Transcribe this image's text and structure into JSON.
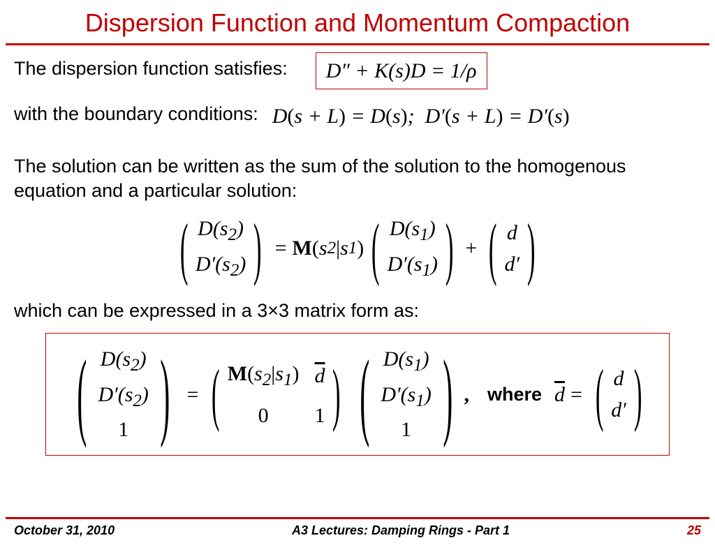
{
  "title": "Dispersion Function and Momentum Compaction",
  "line1_text": "The dispersion function satisfies:",
  "eq1": "D″ + K(s)D = 1/ρ",
  "line2_text": "with the boundary conditions:",
  "eq2a": "D(s + L) = D(s);",
  "eq2b": "D′(s + L) = D′(s)",
  "para1": "The solution can be written as the sum of the solution to the homogenous equation and a particular solution:",
  "m1": {
    "l1": "D(s₂)",
    "l2": "D′(s₂)",
    "r1": "D(s₁)",
    "r2": "D′(s₁)",
    "M": "M",
    "arg": "(s₂|s₁)",
    "d": "d",
    "dp": "d′"
  },
  "line3_text": "which can be expressed in a 3×3 matrix form as:",
  "m2": {
    "l1": "D(s₂)",
    "l2": "D′(s₂)",
    "l3": "1",
    "r1": "D(s₁)",
    "r2": "D′(s₁)",
    "r3": "1",
    "M": "M",
    "arg": "(s₂|s₁)",
    "dbar": "d",
    "zero": "0",
    "one": "1",
    "comma": ",",
    "where": "where",
    "dbar2": "d",
    "eq": "=",
    "d": "d",
    "dp": "d′"
  },
  "footer": {
    "date": "October 31, 2010",
    "center": "A3 Lectures:  Damping Rings - Part 1",
    "page": "25"
  },
  "colors": {
    "accent": "#c00000",
    "text": "#000000",
    "bg": "#ffffff"
  }
}
